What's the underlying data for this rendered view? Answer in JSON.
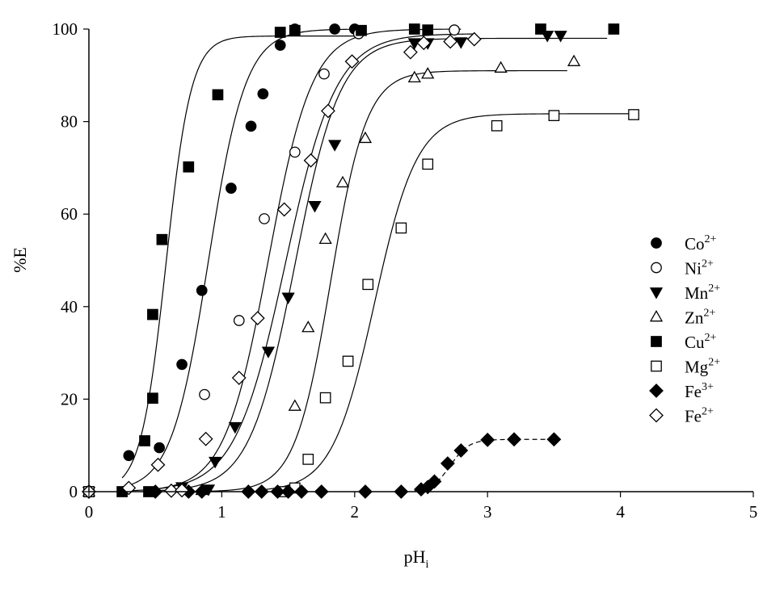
{
  "chart_data": {
    "type": "scatter",
    "xlabel": "pH",
    "xlabel_sub": "i",
    "ylabel": "%E",
    "xlim": [
      0,
      5
    ],
    "ylim": [
      0,
      100
    ],
    "xticks": [
      0,
      1,
      2,
      3,
      4,
      5
    ],
    "yticks": [
      0,
      20,
      40,
      60,
      80,
      100
    ],
    "grid": false,
    "legend_position": "right",
    "series": [
      {
        "name": "Co",
        "charge": "2+",
        "marker": "circle",
        "fill": "filled",
        "points": [
          [
            0,
            0
          ],
          [
            0.3,
            7.8
          ],
          [
            0.53,
            9.5
          ],
          [
            0.7,
            27.5
          ],
          [
            0.85,
            43.5
          ],
          [
            1.07,
            65.6
          ],
          [
            1.22,
            79
          ],
          [
            1.31,
            86
          ],
          [
            1.44,
            96.5
          ],
          [
            1.55,
            100
          ],
          [
            1.85,
            100
          ],
          [
            2.0,
            100
          ]
        ],
        "fit": {
          "top": 100,
          "x50": 0.9,
          "k": 0.14,
          "from": 0.3,
          "to": 2.0
        }
      },
      {
        "name": "Ni",
        "charge": "2+",
        "marker": "circle",
        "fill": "open",
        "points": [
          [
            0,
            0
          ],
          [
            0.87,
            21
          ],
          [
            1.13,
            37
          ],
          [
            1.32,
            59
          ],
          [
            1.55,
            73.4
          ],
          [
            1.77,
            90.3
          ],
          [
            2.03,
            99
          ],
          [
            2.75,
            99.8
          ]
        ],
        "fit": {
          "top": 100,
          "x50": 1.35,
          "k": 0.165,
          "from": 0.5,
          "to": 2.8
        }
      },
      {
        "name": "Mn",
        "charge": "2+",
        "marker": "triangle-down",
        "fill": "filled",
        "points": [
          [
            0,
            0
          ],
          [
            0.7,
            1
          ],
          [
            0.9,
            0.5
          ],
          [
            0.95,
            6.5
          ],
          [
            1.1,
            14
          ],
          [
            1.35,
            30.3
          ],
          [
            1.5,
            42
          ],
          [
            1.7,
            61.8
          ],
          [
            1.85,
            75
          ],
          [
            2.45,
            97
          ],
          [
            2.55,
            97
          ],
          [
            2.8,
            97.2
          ],
          [
            3.45,
            98.6
          ],
          [
            3.55,
            98.6
          ]
        ],
        "fit": {
          "top": 98,
          "x50": 1.55,
          "k": 0.17,
          "from": 0.5,
          "to": 3.9
        }
      },
      {
        "name": "Zn",
        "charge": "2+",
        "marker": "triangle-up",
        "fill": "open",
        "points": [
          [
            0,
            0
          ],
          [
            0.85,
            0.3
          ],
          [
            1.55,
            18.5
          ],
          [
            1.65,
            35.5
          ],
          [
            1.78,
            54.6
          ],
          [
            1.91,
            66.8
          ],
          [
            2.08,
            76.4
          ],
          [
            2.45,
            89.5
          ],
          [
            2.55,
            90.3
          ],
          [
            3.1,
            91.6
          ],
          [
            3.65,
            93
          ]
        ],
        "fit": {
          "top": 91,
          "x50": 1.82,
          "k": 0.135,
          "from": 0.85,
          "to": 3.6
        }
      },
      {
        "name": "Cu",
        "charge": "2+",
        "marker": "square",
        "fill": "filled",
        "points": [
          [
            0,
            0
          ],
          [
            0.25,
            0
          ],
          [
            0.42,
            11
          ],
          [
            0.45,
            0
          ],
          [
            0.48,
            20.2
          ],
          [
            0.48,
            38.3
          ],
          [
            0.55,
            54.5
          ],
          [
            0.75,
            70.2
          ],
          [
            0.97,
            85.8
          ],
          [
            1.44,
            99.3
          ],
          [
            1.55,
            99.7
          ],
          [
            2.05,
            99.7
          ],
          [
            2.45,
            100
          ],
          [
            2.55,
            99.8
          ],
          [
            3.4,
            100
          ],
          [
            3.95,
            100
          ]
        ],
        "fit": {
          "top": 98.5,
          "x50": 0.58,
          "k": 0.095,
          "from": 0.25,
          "to": 2.0
        }
      },
      {
        "name": "Mg",
        "charge": "2+",
        "marker": "square",
        "fill": "open",
        "points": [
          [
            0,
            0
          ],
          [
            1.45,
            0
          ],
          [
            1.55,
            0.8
          ],
          [
            1.65,
            7
          ],
          [
            1.78,
            20.3
          ],
          [
            1.95,
            28.2
          ],
          [
            2.1,
            44.8
          ],
          [
            2.35,
            57
          ],
          [
            2.55,
            70.8
          ],
          [
            3.07,
            79.1
          ],
          [
            3.5,
            81.3
          ],
          [
            4.1,
            81.5
          ]
        ],
        "fit": {
          "top": 81.7,
          "x50": 2.15,
          "k": 0.16,
          "from": 1.3,
          "to": 4.1
        }
      },
      {
        "name": "Fe",
        "charge": "3+",
        "marker": "diamond",
        "fill": "filled",
        "points": [
          [
            0,
            0
          ],
          [
            0.5,
            0
          ],
          [
            0.75,
            0
          ],
          [
            0.85,
            0
          ],
          [
            1.2,
            0
          ],
          [
            1.3,
            0
          ],
          [
            1.42,
            0
          ],
          [
            1.5,
            0
          ],
          [
            1.6,
            0
          ],
          [
            1.75,
            0
          ],
          [
            2.08,
            0
          ],
          [
            2.35,
            0
          ],
          [
            2.5,
            0.5
          ],
          [
            2.55,
            1
          ],
          [
            2.6,
            2.2
          ],
          [
            2.7,
            6.1
          ],
          [
            2.8,
            8.9
          ],
          [
            3.0,
            11.2
          ],
          [
            3.2,
            11.3
          ],
          [
            3.5,
            11.3
          ]
        ],
        "fit": {
          "top": 11.3,
          "x50": 2.72,
          "k": 0.07,
          "from": 2.45,
          "to": 3.5,
          "dashed": true
        }
      },
      {
        "name": "Fe",
        "charge": "2+",
        "marker": "diamond",
        "fill": "open",
        "points": [
          [
            0,
            0
          ],
          [
            0.3,
            0.8
          ],
          [
            0.52,
            5.8
          ],
          [
            0.62,
            0.2
          ],
          [
            0.7,
            0.3
          ],
          [
            0.88,
            11.4
          ],
          [
            1.13,
            24.6
          ],
          [
            1.27,
            37.5
          ],
          [
            1.47,
            61
          ],
          [
            1.67,
            71.6
          ],
          [
            1.8,
            82.3
          ],
          [
            1.98,
            93
          ],
          [
            2.42,
            95
          ],
          [
            2.52,
            97
          ],
          [
            2.72,
            97.3
          ],
          [
            2.9,
            97.8
          ]
        ],
        "fit": {
          "top": 99,
          "x50": 1.48,
          "k": 0.19,
          "from": 0.3,
          "to": 2.9
        }
      }
    ]
  }
}
